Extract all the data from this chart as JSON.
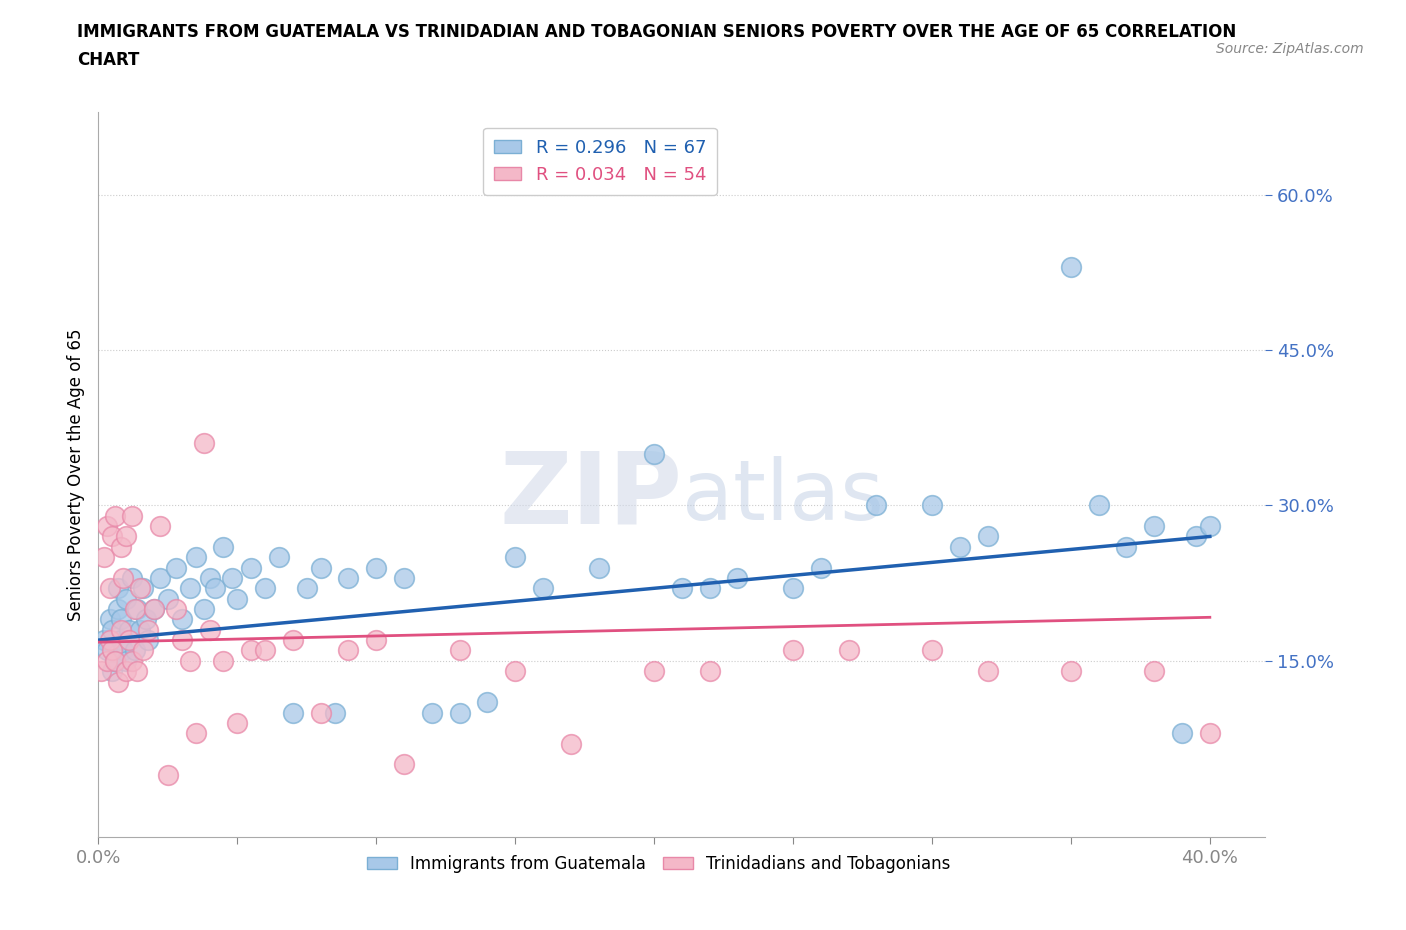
{
  "title_line1": "IMMIGRANTS FROM GUATEMALA VS TRINIDADIAN AND TOBAGONIAN SENIORS POVERTY OVER THE AGE OF 65 CORRELATION",
  "title_line2": "CHART",
  "source_text": "Source: ZipAtlas.com",
  "ylabel": "Seniors Poverty Over the Age of 65",
  "xlim": [
    0.0,
    0.42
  ],
  "ylim": [
    -0.02,
    0.68
  ],
  "xticks": [
    0.0,
    0.05,
    0.1,
    0.15,
    0.2,
    0.25,
    0.3,
    0.35,
    0.4
  ],
  "ytick_positions": [
    0.15,
    0.3,
    0.45,
    0.6
  ],
  "yticklabels": [
    "15.0%",
    "30.0%",
    "45.0%",
    "60.0%"
  ],
  "blue_color": "#a8c8e8",
  "blue_edge_color": "#7bafd4",
  "pink_color": "#f4b8c8",
  "pink_edge_color": "#e888a8",
  "blue_line_color": "#2060b0",
  "pink_line_color": "#e05080",
  "R_blue": 0.296,
  "N_blue": 67,
  "R_pink": 0.034,
  "N_pink": 54,
  "legend1_label": "Immigrants from Guatemala",
  "legend2_label": "Trinidadians and Tobagonians",
  "blue_trend_start": 0.17,
  "blue_trend_end": 0.27,
  "pink_trend_start": 0.168,
  "pink_trend_end": 0.192,
  "blue_scatter_x": [
    0.002,
    0.003,
    0.004,
    0.005,
    0.005,
    0.006,
    0.007,
    0.007,
    0.008,
    0.008,
    0.009,
    0.01,
    0.01,
    0.011,
    0.012,
    0.013,
    0.014,
    0.015,
    0.016,
    0.017,
    0.018,
    0.02,
    0.022,
    0.025,
    0.028,
    0.03,
    0.033,
    0.035,
    0.038,
    0.04,
    0.042,
    0.045,
    0.048,
    0.05,
    0.055,
    0.06,
    0.065,
    0.07,
    0.075,
    0.08,
    0.085,
    0.09,
    0.1,
    0.11,
    0.12,
    0.13,
    0.14,
    0.15,
    0.16,
    0.18,
    0.2,
    0.21,
    0.22,
    0.23,
    0.25,
    0.26,
    0.28,
    0.3,
    0.31,
    0.32,
    0.35,
    0.36,
    0.37,
    0.38,
    0.39,
    0.395,
    0.4
  ],
  "blue_scatter_y": [
    0.17,
    0.16,
    0.19,
    0.14,
    0.18,
    0.15,
    0.2,
    0.22,
    0.17,
    0.19,
    0.16,
    0.15,
    0.21,
    0.18,
    0.23,
    0.16,
    0.2,
    0.18,
    0.22,
    0.19,
    0.17,
    0.2,
    0.23,
    0.21,
    0.24,
    0.19,
    0.22,
    0.25,
    0.2,
    0.23,
    0.22,
    0.26,
    0.23,
    0.21,
    0.24,
    0.22,
    0.25,
    0.1,
    0.22,
    0.24,
    0.1,
    0.23,
    0.24,
    0.23,
    0.1,
    0.1,
    0.11,
    0.25,
    0.22,
    0.24,
    0.35,
    0.22,
    0.22,
    0.23,
    0.22,
    0.24,
    0.3,
    0.3,
    0.26,
    0.27,
    0.53,
    0.3,
    0.26,
    0.28,
    0.08,
    0.27,
    0.28
  ],
  "pink_scatter_x": [
    0.001,
    0.002,
    0.003,
    0.003,
    0.004,
    0.004,
    0.005,
    0.005,
    0.006,
    0.006,
    0.007,
    0.008,
    0.008,
    0.009,
    0.01,
    0.01,
    0.011,
    0.012,
    0.012,
    0.013,
    0.014,
    0.015,
    0.016,
    0.018,
    0.02,
    0.022,
    0.025,
    0.028,
    0.03,
    0.033,
    0.035,
    0.038,
    0.04,
    0.045,
    0.05,
    0.055,
    0.06,
    0.07,
    0.08,
    0.09,
    0.1,
    0.11,
    0.13,
    0.15,
    0.17,
    0.2,
    0.22,
    0.25,
    0.27,
    0.3,
    0.32,
    0.35,
    0.38,
    0.4
  ],
  "pink_scatter_y": [
    0.14,
    0.25,
    0.15,
    0.28,
    0.17,
    0.22,
    0.16,
    0.27,
    0.15,
    0.29,
    0.13,
    0.26,
    0.18,
    0.23,
    0.14,
    0.27,
    0.17,
    0.15,
    0.29,
    0.2,
    0.14,
    0.22,
    0.16,
    0.18,
    0.2,
    0.28,
    0.04,
    0.2,
    0.17,
    0.15,
    0.08,
    0.36,
    0.18,
    0.15,
    0.09,
    0.16,
    0.16,
    0.17,
    0.1,
    0.16,
    0.17,
    0.05,
    0.16,
    0.14,
    0.07,
    0.14,
    0.14,
    0.16,
    0.16,
    0.16,
    0.14,
    0.14,
    0.14,
    0.08
  ]
}
